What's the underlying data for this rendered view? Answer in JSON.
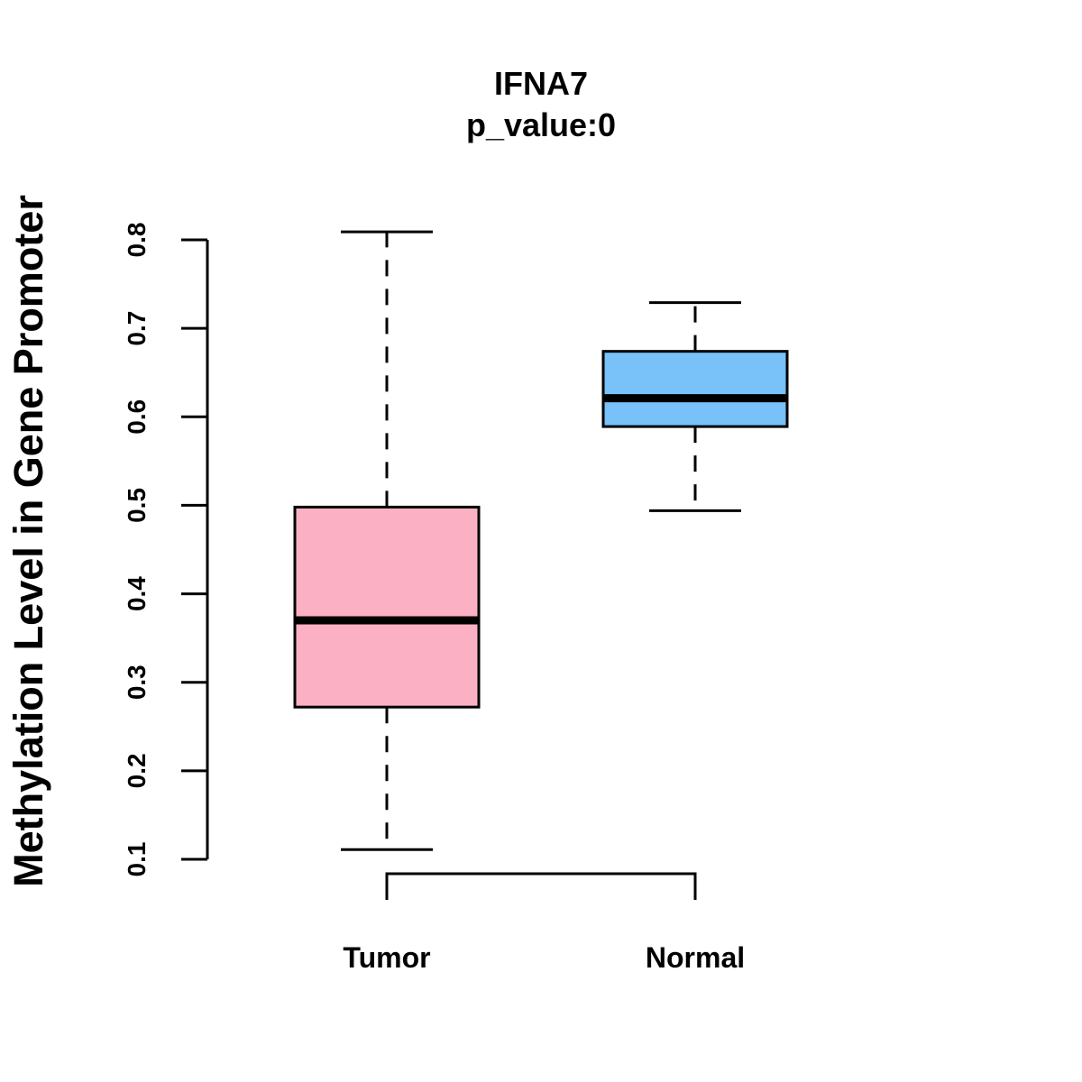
{
  "chart_data": {
    "type": "boxplot",
    "title": "IFNA7",
    "subtitle": "p_value:0",
    "xlabel": "",
    "ylabel": "Methylation Level in Gene Promoter",
    "ylim": [
      0.1,
      0.8
    ],
    "yticks": [
      "0.1",
      "0.2",
      "0.3",
      "0.4",
      "0.5",
      "0.6",
      "0.7",
      "0.8"
    ],
    "grid": false,
    "categories": [
      "Tumor",
      "Normal"
    ],
    "boxes": [
      {
        "name": "Tumor",
        "min": 0.111,
        "q1": 0.272,
        "median": 0.37,
        "q3": 0.498,
        "max": 0.809,
        "color": "#FBB1C3"
      },
      {
        "name": "Normal",
        "min": 0.494,
        "q1": 0.589,
        "median": 0.621,
        "q3": 0.674,
        "max": 0.729,
        "color": "#78C1F9"
      }
    ]
  }
}
